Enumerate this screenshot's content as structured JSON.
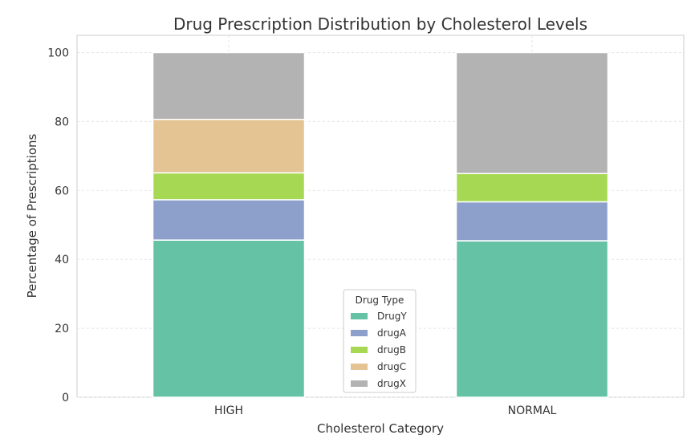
{
  "chart_data": {
    "type": "bar",
    "stacked": true,
    "title": "Drug Prescription Distribution by Cholesterol Levels",
    "xlabel": "Cholesterol Category",
    "ylabel": "Percentage of Prescriptions",
    "categories": [
      "HIGH",
      "NORMAL"
    ],
    "ylim": [
      0,
      105
    ],
    "yticks": [
      0,
      20,
      40,
      60,
      80,
      100
    ],
    "grid": true,
    "legend": {
      "title": "Drug Type",
      "position": "lower center"
    },
    "series": [
      {
        "name": "DrugY",
        "color": "#66c2a5",
        "values": [
          45.6,
          45.4
        ]
      },
      {
        "name": "drugA",
        "color": "#8da0cb",
        "values": [
          11.7,
          11.3
        ]
      },
      {
        "name": "drugB",
        "color": "#a6d854",
        "values": [
          7.8,
          8.2
        ]
      },
      {
        "name": "drugC",
        "color": "#e5c494",
        "values": [
          15.5,
          0
        ]
      },
      {
        "name": "drugX",
        "color": "#b3b3b3",
        "values": [
          19.4,
          35.1
        ]
      }
    ]
  }
}
